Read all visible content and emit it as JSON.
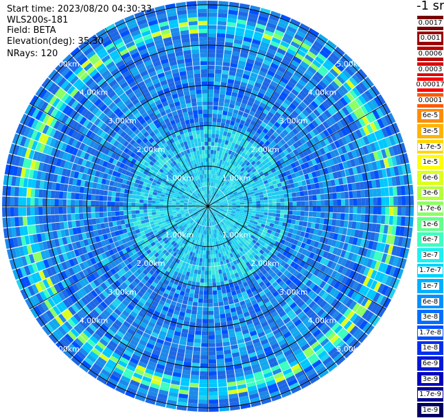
{
  "info": {
    "start_time": "Start time: 2023/08/20 04:30:33",
    "device": "WLS200s-181",
    "field": "Field: BETA",
    "elevation": "Elevation(deg): 35.30",
    "nrays": "NRays: 120"
  },
  "colorbar": {
    "title": "-1 sr",
    "entries": [
      {
        "label": "0.0017",
        "color": "#7a0000"
      },
      {
        "label": "0.001",
        "color": "#9a0000"
      },
      {
        "label": "0.0006",
        "color": "#bb0000"
      },
      {
        "label": "0.0003",
        "color": "#dd0000"
      },
      {
        "label": "0.00017",
        "color": "#ff0000"
      },
      {
        "label": "0.0001",
        "color": "#ff5a00"
      },
      {
        "label": "6e-5",
        "color": "#ff8c00"
      },
      {
        "label": "3e-5",
        "color": "#ffb300"
      },
      {
        "label": "1.7e-5",
        "color": "#ffd700"
      },
      {
        "label": "1e-5",
        "color": "#ffff00"
      },
      {
        "label": "6e-6",
        "color": "#dcff1e"
      },
      {
        "label": "3e-6",
        "color": "#b4ff3c"
      },
      {
        "label": "1.7e-6",
        "color": "#8cff64"
      },
      {
        "label": "1e-6",
        "color": "#64ff8c"
      },
      {
        "label": "6e-7",
        "color": "#3cffc0"
      },
      {
        "label": "3e-7",
        "color": "#1ef0f0"
      },
      {
        "label": "1.7e-7",
        "color": "#00d2ff"
      },
      {
        "label": "1e-7",
        "color": "#00b0ff"
      },
      {
        "label": "6e-8",
        "color": "#0090ff"
      },
      {
        "label": "3e-8",
        "color": "#0070ff"
      },
      {
        "label": "1.7e-8",
        "color": "#0050ff"
      },
      {
        "label": "1e-8",
        "color": "#0030f0"
      },
      {
        "label": "6e-9",
        "color": "#0018d8"
      },
      {
        "label": "3e-9",
        "color": "#0000c0"
      },
      {
        "label": "1.7e-9",
        "color": "#000090"
      },
      {
        "label": "1e-9",
        "color": "#000060"
      }
    ]
  },
  "chart_data": {
    "type": "heatmap",
    "projection": "polar PPI scan",
    "ring_labels": [
      "1.00km",
      "2.00km",
      "3.00km",
      "4.00km",
      "5.00km"
    ],
    "ring_values_km": [
      1,
      2,
      3,
      4,
      5
    ],
    "max_range_km": 5.1,
    "spokes": 12,
    "nrays": 120,
    "bright_ring_km": 4.5,
    "colorscale": "log",
    "value_range": [
      1e-09,
      0.0017
    ]
  }
}
